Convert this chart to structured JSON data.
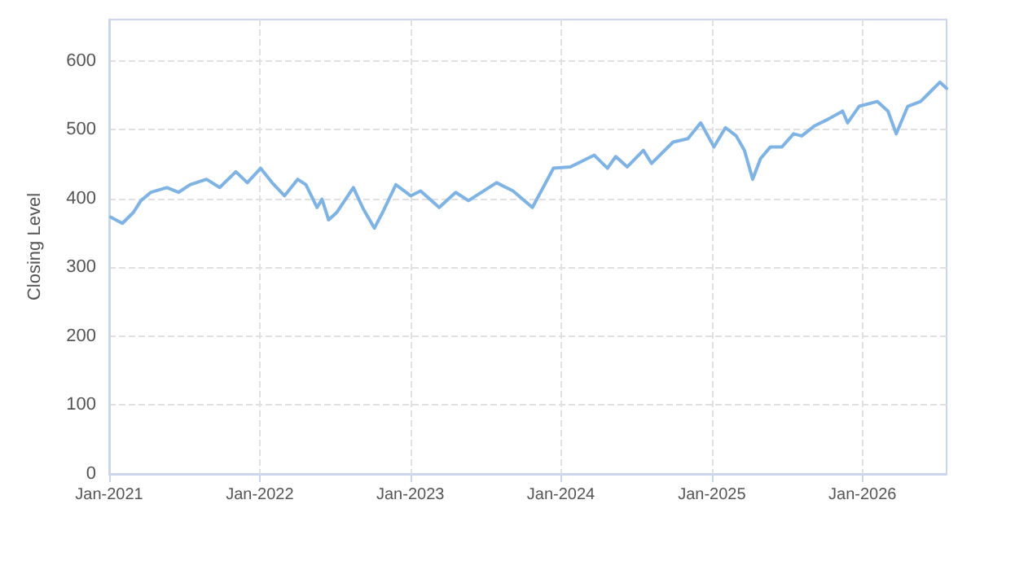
{
  "chart_data": {
    "type": "line",
    "ylabel": "Closing Level",
    "x": [
      "2021-01-05",
      "2021-02-02",
      "2021-03-01",
      "2021-03-19",
      "2021-04-12",
      "2021-05-21",
      "2021-06-18",
      "2021-07-16",
      "2021-08-25",
      "2021-09-26",
      "2021-11-04",
      "2021-12-02",
      "2022-01-03",
      "2022-01-31",
      "2022-03-02",
      "2022-04-03",
      "2022-04-23",
      "2022-05-20",
      "2022-06-01",
      "2022-06-17",
      "2022-07-07",
      "2022-08-16",
      "2022-09-09",
      "2022-10-06",
      "2022-10-26",
      "2022-11-27",
      "2023-01-02",
      "2023-01-26",
      "2023-03-12",
      "2023-04-21",
      "2023-05-22",
      "2023-07-29",
      "2023-09-07",
      "2023-10-24",
      "2023-12-14",
      "2024-01-24",
      "2024-03-22",
      "2024-04-23",
      "2024-05-13",
      "2024-06-10",
      "2024-07-19",
      "2024-08-08",
      "2024-09-29",
      "2024-11-04",
      "2024-12-05",
      "2025-01-06",
      "2025-02-03",
      "2025-03-01",
      "2025-03-21",
      "2025-04-10",
      "2025-04-29",
      "2025-05-23",
      "2025-06-20",
      "2025-07-18",
      "2025-08-07",
      "2025-09-08",
      "2025-10-09",
      "2025-11-14",
      "2025-11-26",
      "2025-12-24",
      "2026-02-06",
      "2026-03-04",
      "2026-03-24",
      "2026-04-21",
      "2026-05-22",
      "2026-06-11",
      "2026-07-08",
      "2026-07-24"
    ],
    "series": [
      {
        "color": "#7eb3e3",
        "values": [
          373,
          364,
          380,
          397,
          409,
          416,
          409,
          420,
          428,
          416,
          439,
          423,
          444,
          423,
          404,
          428,
          420,
          387,
          399,
          369,
          380,
          416,
          385,
          357,
          380,
          420,
          404,
          411,
          387,
          409,
          397,
          423,
          411,
          387,
          444,
          446,
          463,
          444,
          461,
          446,
          470,
          451,
          482,
          487,
          510,
          475,
          503,
          491,
          470,
          428,
          458,
          475,
          475,
          494,
          491,
          506,
          515,
          527,
          510,
          534,
          541,
          527,
          494,
          534,
          541,
          553,
          569,
          560
        ]
      }
    ],
    "xlim": [
      "2021-01-01",
      "2026-07-24"
    ],
    "xticks": [
      {
        "value": "2021-01-01",
        "label": "Jan-2021"
      },
      {
        "value": "2022-01-01",
        "label": "Jan-2022"
      },
      {
        "value": "2023-01-01",
        "label": "Jan-2023"
      },
      {
        "value": "2024-01-01",
        "label": "Jan-2024"
      },
      {
        "value": "2025-01-01",
        "label": "Jan-2025"
      },
      {
        "value": "2026-01-01",
        "label": "Jan-2026"
      }
    ],
    "ylim": [
      0,
      660
    ],
    "yticks": [
      0,
      100,
      200,
      300,
      400,
      500,
      600
    ],
    "grid": true,
    "marker": "none",
    "line_style": "solid"
  }
}
